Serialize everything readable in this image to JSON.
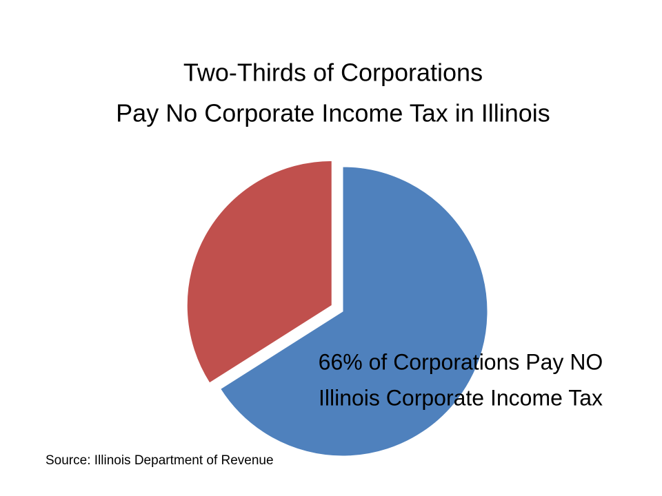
{
  "chart_data": {
    "type": "pie",
    "title": [
      "Two-Thirds of Corporations",
      "Pay No Corporate Income Tax in Illinois"
    ],
    "values": [
      66,
      34
    ],
    "colors": [
      "#4f81bd",
      "#c0504d"
    ],
    "exploded": [
      false,
      true
    ],
    "annotation": [
      "66% of Corporations Pay NO",
      "Illinois Corporate Income Tax"
    ],
    "source": "Source: Illinois Department of Revenue"
  }
}
